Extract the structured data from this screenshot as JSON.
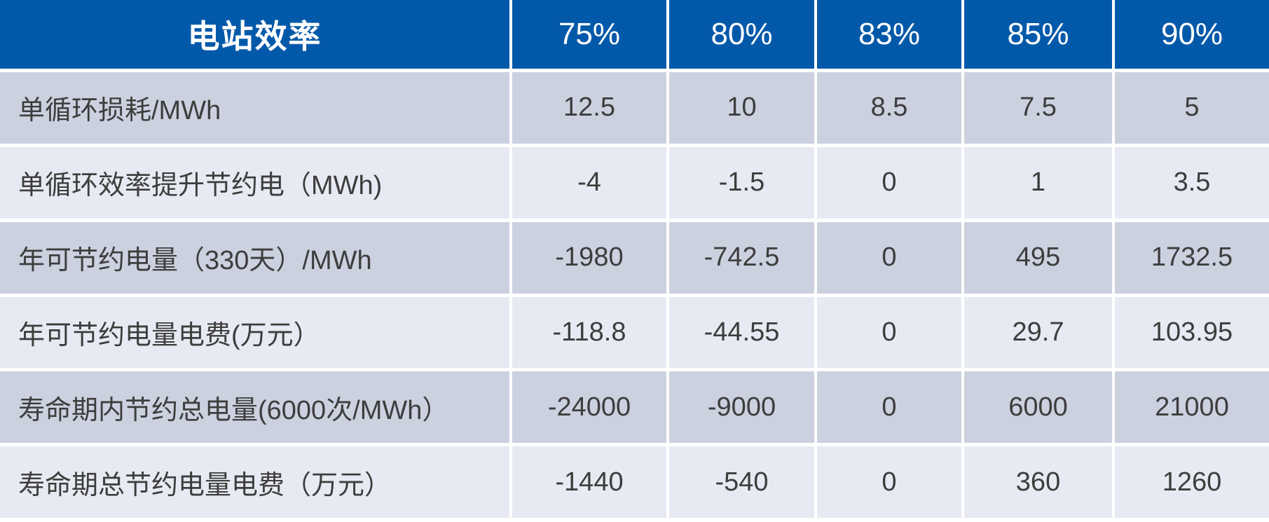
{
  "table": {
    "header": {
      "label": "电站效率",
      "columns": [
        "75%",
        "80%",
        "83%",
        "85%",
        "90%"
      ]
    },
    "rows": [
      {
        "label": "单循环损耗/MWh",
        "values": [
          "12.5",
          "10",
          "8.5",
          "7.5",
          "5"
        ]
      },
      {
        "label": "单循环效率提升节约电（MWh)",
        "values": [
          "-4",
          "-1.5",
          "0",
          "1",
          "3.5"
        ]
      },
      {
        "label": "年可节约电量（330天）/MWh",
        "values": [
          "-1980",
          "-742.5",
          "0",
          "495",
          "1732.5"
        ]
      },
      {
        "label": "年可节约电量电费(万元）",
        "values": [
          "-118.8",
          "-44.55",
          "0",
          "29.7",
          "103.95"
        ]
      },
      {
        "label": "寿命期内节约总电量(6000次/MWh）",
        "values": [
          "-24000",
          "-9000",
          "0",
          "6000",
          "21000"
        ]
      },
      {
        "label": "寿命期总节约电量电费（万元）",
        "values": [
          "-1440",
          "-540",
          "0",
          "360",
          "1260"
        ]
      }
    ]
  },
  "colors": {
    "header_bg": "#0359A9",
    "header_text": "#FFFFFF",
    "row_odd_bg": "#CBD1DF",
    "row_even_bg": "#E7EAF2",
    "body_text": "#3D3D3D",
    "gridline": "#FFFFFF"
  },
  "chart_data": {
    "type": "table",
    "title": "电站效率",
    "columns": [
      "电站效率",
      "75%",
      "80%",
      "83%",
      "85%",
      "90%"
    ],
    "rows": [
      [
        "单循环损耗/MWh",
        12.5,
        10,
        8.5,
        7.5,
        5
      ],
      [
        "单循环效率提升节约电（MWh)",
        -4,
        -1.5,
        0,
        1,
        3.5
      ],
      [
        "年可节约电量（330天）/MWh",
        -1980,
        -742.5,
        0,
        495,
        1732.5
      ],
      [
        "年可节约电量电费(万元）",
        -118.8,
        -44.55,
        0,
        29.7,
        103.95
      ],
      [
        "寿命期内节约总电量(6000次/MWh）",
        -24000,
        -9000,
        0,
        6000,
        21000
      ],
      [
        "寿命期总节约电量电费（万元）",
        -1440,
        -540,
        0,
        360,
        1260
      ]
    ]
  }
}
